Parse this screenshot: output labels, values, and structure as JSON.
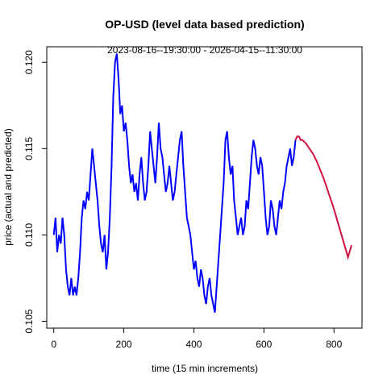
{
  "chart_data": {
    "type": "line",
    "title": "OP-USD (level data based prediction)",
    "subtitle": "2023-08-16--19:30:00  -  2026-04-15--11:30:00",
    "xlabel": "time (15 min increments)",
    "ylabel": "price (actual and predicted)",
    "xlim": [
      -20,
      880
    ],
    "ylim": [
      0.1046,
      0.1209
    ],
    "xticks": [
      0,
      200,
      400,
      600,
      800
    ],
    "yticks": [
      0.105,
      0.11,
      0.115,
      0.12
    ],
    "ytick_labels": [
      "0.105",
      "0.110",
      "0.115",
      "0.120"
    ],
    "grid": false,
    "series": [
      {
        "color": "#0000ff",
        "x": [
          0,
          5,
          10,
          15,
          20,
          25,
          30,
          35,
          40,
          45,
          50,
          55,
          60,
          65,
          70,
          75,
          80,
          85,
          90,
          95,
          100,
          105,
          110,
          115,
          120,
          125,
          130,
          135,
          140,
          145,
          150,
          155,
          160,
          165,
          170,
          175,
          180,
          185,
          190,
          195,
          200,
          205,
          210,
          215,
          220,
          225,
          230,
          235,
          240,
          245,
          250,
          255,
          260,
          265,
          270,
          275,
          280,
          285,
          290,
          295,
          300,
          305,
          310,
          315,
          320,
          325,
          330,
          335,
          340,
          345,
          350,
          355,
          360,
          365,
          370,
          375,
          380,
          385,
          390,
          395,
          400,
          405,
          410,
          415,
          420,
          425,
          430,
          435,
          440,
          445,
          450,
          455,
          460,
          465,
          470,
          475,
          480,
          485,
          490,
          495,
          500,
          505,
          510,
          515,
          520,
          525,
          530,
          535,
          540,
          545,
          550,
          555,
          560,
          565,
          570,
          575,
          580,
          585,
          590,
          595,
          600,
          605,
          610,
          615,
          620,
          625,
          630,
          635,
          640,
          645,
          650,
          655,
          660,
          665,
          670,
          675,
          680,
          685,
          690
        ],
        "y": [
          0.11,
          0.111,
          0.109,
          0.11,
          0.1095,
          0.111,
          0.11,
          0.108,
          0.107,
          0.1065,
          0.1075,
          0.1065,
          0.107,
          0.1065,
          0.1075,
          0.109,
          0.111,
          0.112,
          0.1115,
          0.1125,
          0.112,
          0.1135,
          0.115,
          0.114,
          0.113,
          0.112,
          0.1105,
          0.1095,
          0.109,
          0.11,
          0.108,
          0.109,
          0.111,
          0.114,
          0.118,
          0.12,
          0.1205,
          0.119,
          0.117,
          0.1175,
          0.116,
          0.1165,
          0.1155,
          0.114,
          0.113,
          0.1135,
          0.1125,
          0.113,
          0.112,
          0.1135,
          0.1145,
          0.113,
          0.112,
          0.1125,
          0.114,
          0.116,
          0.115,
          0.114,
          0.113,
          0.1145,
          0.1165,
          0.115,
          0.1145,
          0.1135,
          0.1125,
          0.113,
          0.114,
          0.113,
          0.112,
          0.1125,
          0.1135,
          0.1145,
          0.1155,
          0.116,
          0.114,
          0.1125,
          0.111,
          0.1105,
          0.11,
          0.109,
          0.108,
          0.1085,
          0.1075,
          0.107,
          0.108,
          0.1075,
          0.1065,
          0.106,
          0.107,
          0.1075,
          0.1065,
          0.106,
          0.1055,
          0.107,
          0.1085,
          0.11,
          0.1115,
          0.113,
          0.1155,
          0.116,
          0.1145,
          0.1135,
          0.114,
          0.112,
          0.111,
          0.11,
          0.1105,
          0.111,
          0.11,
          0.1105,
          0.112,
          0.1115,
          0.113,
          0.1145,
          0.1155,
          0.115,
          0.114,
          0.1135,
          0.1145,
          0.114,
          0.1125,
          0.111,
          0.11,
          0.1105,
          0.112,
          0.1115,
          0.1105,
          0.11,
          0.111,
          0.112,
          0.1115,
          0.1125,
          0.113,
          0.114,
          0.1145,
          0.115,
          0.114,
          0.1145,
          0.1155
        ]
      },
      {
        "color": "#d01040",
        "x": [
          690,
          695,
          700,
          705,
          710,
          720,
          730,
          740,
          750,
          760,
          770,
          780,
          790,
          800,
          810,
          820,
          830,
          840,
          850
        ],
        "y": [
          0.1155,
          0.1157,
          0.1157,
          0.1155,
          0.1155,
          0.1153,
          0.115,
          0.1147,
          0.1143,
          0.1138,
          0.1133,
          0.1127,
          0.1121,
          0.1115,
          0.1108,
          0.1101,
          0.1094,
          0.1087,
          0.1094
        ]
      }
    ]
  }
}
